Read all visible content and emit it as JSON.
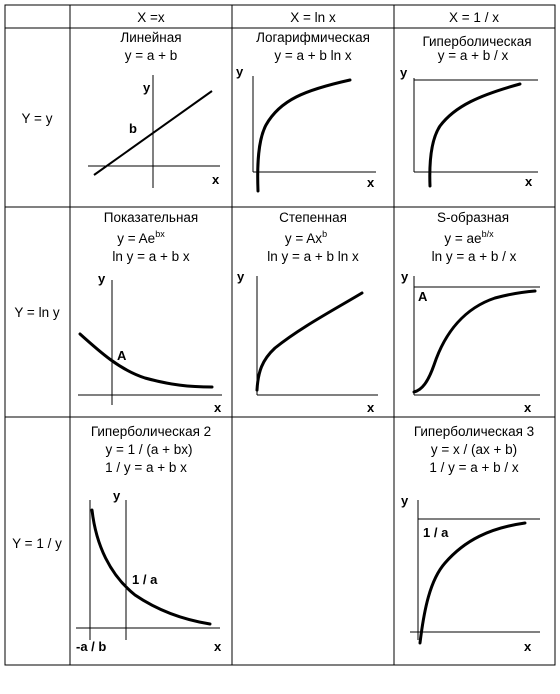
{
  "header": {
    "col1": "X =x",
    "col2": "X = ln x",
    "col3": "X = 1 / x"
  },
  "rows": {
    "r1": "Y = y",
    "r2": "Y = ln y",
    "r3": "Y = 1 / y"
  },
  "axis_labels": {
    "x": "x",
    "y": "y"
  },
  "cells": {
    "linear": {
      "title": "Линейная",
      "eq1": "y = a + b",
      "point_label": "b"
    },
    "log": {
      "title": "Логарифмическая",
      "eq1": "y = a + b ln x"
    },
    "hyp": {
      "title": "Гиперболическая",
      "eq1": "y = a + b / x"
    },
    "exp": {
      "title": "Показательная",
      "eq1_pre": "y = Ae",
      "eq1_sup": "bx",
      "eq2": "ln y = a + b x",
      "point_label": "A"
    },
    "power": {
      "title": "Степенная",
      "eq1_pre": "y = Ax",
      "eq1_sup": "b",
      "eq2": "ln y = a + b ln x"
    },
    "sshape": {
      "title": "S-образная",
      "eq1_pre": "y = ae",
      "eq1_sup": "b/x",
      "eq2": "ln y = a + b / x",
      "point_label": "A"
    },
    "hyp2": {
      "title": "Гиперболическая 2",
      "eq1": "y = 1 / (a + bx)",
      "eq2": "1 / y = a + b x",
      "point_label": "1 / a",
      "x_label": "-a / b"
    },
    "hyp3": {
      "title": "Гиперболическая 3",
      "eq1": "y = x / (ax + b)",
      "eq2": "1 / y = a + b / x",
      "point_label": "1 / a"
    }
  }
}
